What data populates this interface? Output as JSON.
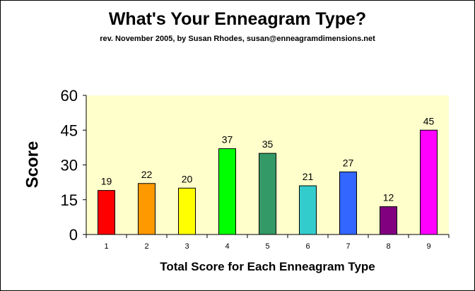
{
  "chart_data": {
    "type": "bar",
    "title": "What's Your Enneagram Type?",
    "subtitle": "rev. November 2005, by Susan Rhodes, susan@enneagramdimensions.net",
    "xlabel": "Total Score for Each Enneagram Type",
    "ylabel": "Score",
    "categories": [
      "1",
      "2",
      "3",
      "4",
      "5",
      "6",
      "7",
      "8",
      "9"
    ],
    "values": [
      19,
      22,
      20,
      37,
      35,
      21,
      27,
      12,
      45
    ],
    "data_labels": [
      "19",
      "22",
      "20",
      "37",
      "35",
      "21",
      "27",
      "12",
      "45"
    ],
    "bar_colors": [
      "#ff0000",
      "#ff9900",
      "#ffff00",
      "#00ff00",
      "#339966",
      "#33cccc",
      "#3366ff",
      "#800080",
      "#ff00ff"
    ],
    "ylim": [
      0,
      60
    ],
    "yticks": [
      0,
      15,
      30,
      45,
      60
    ],
    "ytick_labels": [
      "0",
      "15",
      "30",
      "45",
      "60"
    ],
    "plot_background": "#ffffcc",
    "grid": false,
    "legend": "none"
  }
}
